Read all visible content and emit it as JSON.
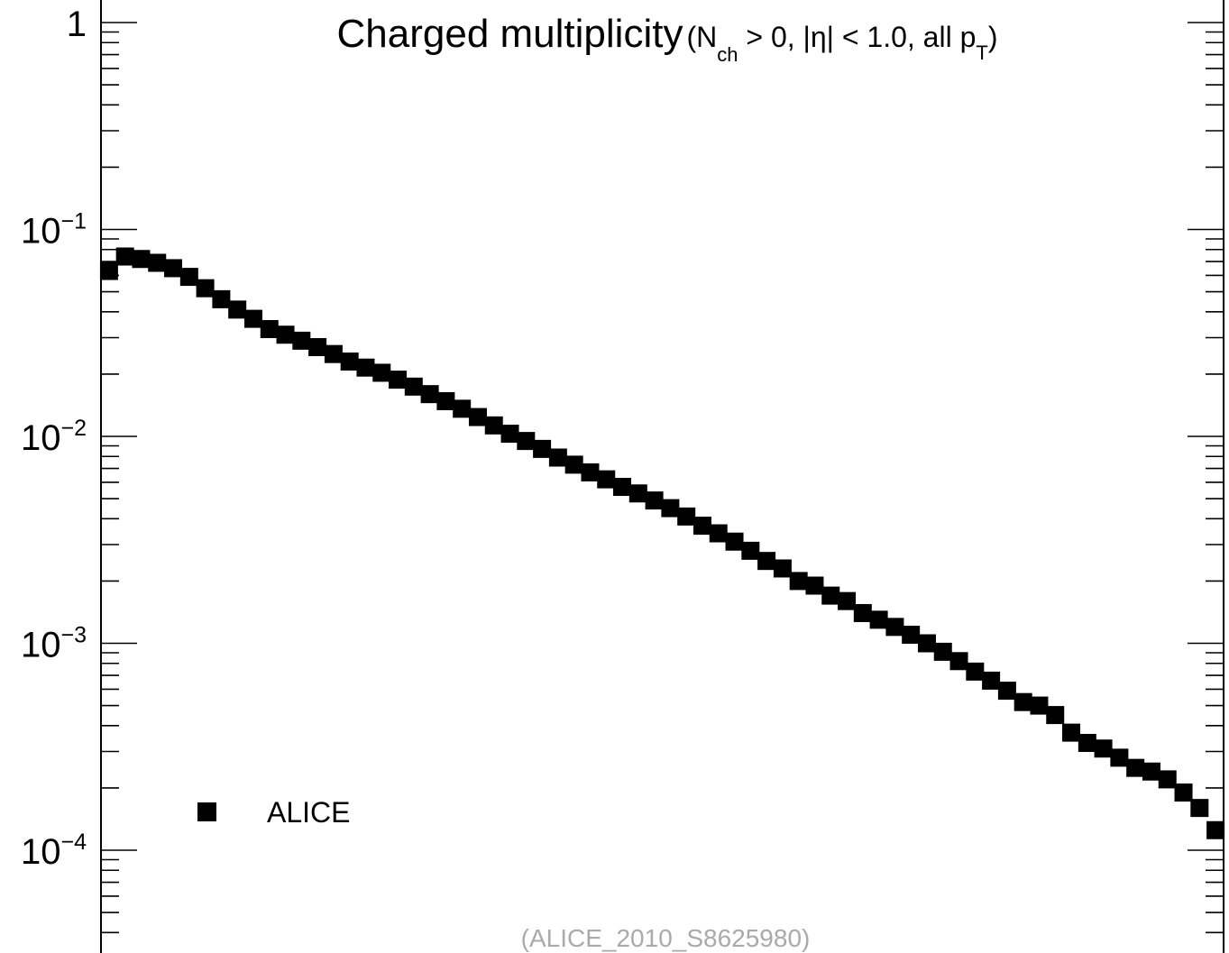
{
  "chart_data": {
    "type": "scatter",
    "title": {
      "main": "Charged multiplicity",
      "open": "(N",
      "sub_ch": "ch",
      "mid": " > 0, |η| < 1.0, all p",
      "sub_t": "T",
      "close": ")"
    },
    "xlabel": "",
    "ylabel": "",
    "y_scale": "log",
    "ylim": [
      3e-05,
      1.6
    ],
    "xlim": [
      0.5,
      70.5
    ],
    "y_tick_labels": [
      {
        "value": 1,
        "base": "1",
        "exp": ""
      },
      {
        "value": 0.1,
        "base": "10",
        "exp": "−1"
      },
      {
        "value": 0.01,
        "base": "10",
        "exp": "−2"
      },
      {
        "value": 0.001,
        "base": "10",
        "exp": "−3"
      },
      {
        "value": 0.0001,
        "base": "10",
        "exp": "−4"
      }
    ],
    "legend": {
      "position": "bottom-left",
      "entries": [
        "ALICE"
      ]
    },
    "series": [
      {
        "name": "ALICE",
        "color": "#000000",
        "marker": "square",
        "x": [
          1,
          2,
          3,
          4,
          5,
          6,
          7,
          8,
          9,
          10,
          11,
          12,
          13,
          14,
          15,
          16,
          17,
          18,
          19,
          20,
          21,
          22,
          23,
          24,
          25,
          26,
          27,
          28,
          29,
          30,
          31,
          32,
          33,
          34,
          35,
          36,
          37,
          38,
          39,
          40,
          41,
          42,
          43,
          44,
          45,
          46,
          47,
          48,
          49,
          50,
          51,
          52,
          53,
          54,
          55,
          56,
          57,
          58,
          59,
          60,
          61,
          62,
          63,
          64,
          65,
          66,
          67,
          68,
          69,
          70
        ],
        "y": [
          0.063,
          0.074,
          0.072,
          0.069,
          0.065,
          0.059,
          0.052,
          0.046,
          0.041,
          0.037,
          0.033,
          0.031,
          0.029,
          0.027,
          0.025,
          0.023,
          0.0215,
          0.0203,
          0.0188,
          0.0174,
          0.016,
          0.0148,
          0.0136,
          0.0124,
          0.0113,
          0.0103,
          0.0095,
          0.0087,
          0.0079,
          0.0073,
          0.0067,
          0.0062,
          0.0057,
          0.0053,
          0.0049,
          0.0045,
          0.0041,
          0.0037,
          0.0034,
          0.0031,
          0.0028,
          0.0025,
          0.0023,
          0.002,
          0.0019,
          0.0017,
          0.0016,
          0.0014,
          0.0013,
          0.0012,
          0.0011,
          0.001,
          0.00091,
          0.00082,
          0.00073,
          0.00066,
          0.00059,
          0.00052,
          0.0005,
          0.00045,
          0.00037,
          0.00033,
          0.00031,
          0.00028,
          0.00025,
          0.00024,
          0.00022,
          0.00019,
          0.00016,
          0.000125
        ]
      }
    ],
    "source": "(ALICE_2010_S8625980)"
  }
}
